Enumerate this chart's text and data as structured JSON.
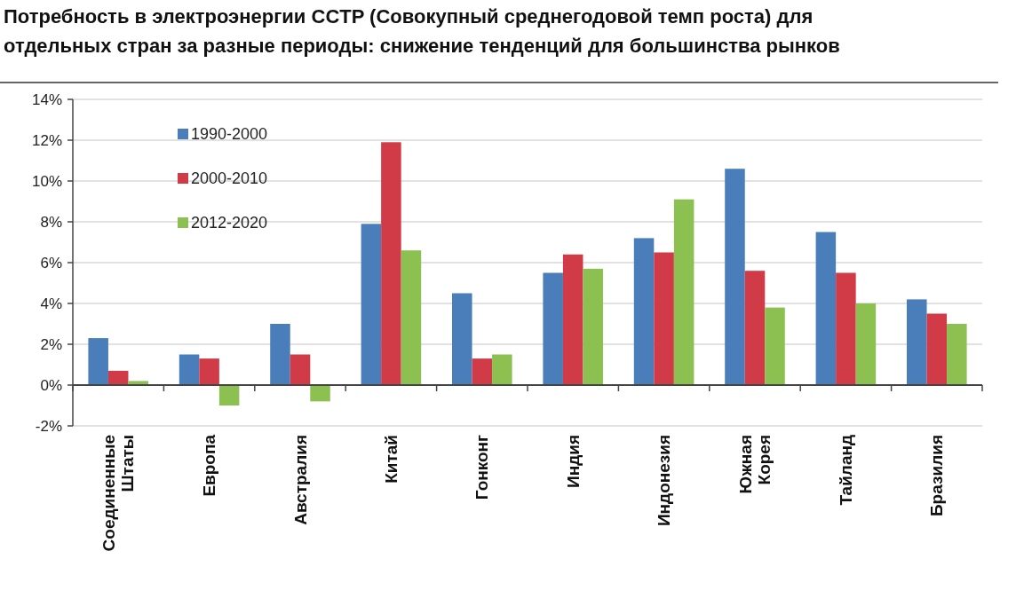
{
  "chart_data": {
    "type": "bar",
    "title": "Потребность в электроэнергии СCTP (Совокупный среднегодовой темп роста) для отдельных стран за разные периоды: снижение тенденций для большинства рынков",
    "categories": [
      "Соединенные Штаты",
      "Европа",
      "Австралия",
      "Китай",
      "Гонконг",
      "Индия",
      "Индонезия",
      "Южная Корея",
      "Тайланд",
      "Бразилия"
    ],
    "series": [
      {
        "name": "1990-2000",
        "color": "#4a7ebb",
        "values": [
          2.3,
          1.5,
          3.0,
          7.9,
          4.5,
          5.5,
          7.2,
          10.6,
          7.5,
          4.2
        ]
      },
      {
        "name": "2000-2010",
        "color": "#d13a47",
        "values": [
          0.7,
          1.3,
          1.5,
          11.9,
          1.3,
          6.4,
          6.5,
          5.6,
          5.5,
          3.5
        ]
      },
      {
        "name": "2012-2020",
        "color": "#8cc152",
        "values": [
          0.2,
          -1.0,
          -0.8,
          6.6,
          1.5,
          5.7,
          9.1,
          3.8,
          4.0,
          3.0
        ]
      }
    ],
    "ylim": [
      -2,
      14
    ],
    "yticks": [
      {
        "value": -2,
        "label": "-2%"
      },
      {
        "value": 0,
        "label": "0%"
      },
      {
        "value": 2,
        "label": "2%"
      },
      {
        "value": 4,
        "label": "4%"
      },
      {
        "value": 6,
        "label": "6%"
      },
      {
        "value": 8,
        "label": "8%"
      },
      {
        "value": 10,
        "label": "10%"
      },
      {
        "value": 12,
        "label": "12%"
      },
      {
        "value": 14,
        "label": "14%"
      }
    ],
    "grid": "y",
    "legend": "top left"
  }
}
